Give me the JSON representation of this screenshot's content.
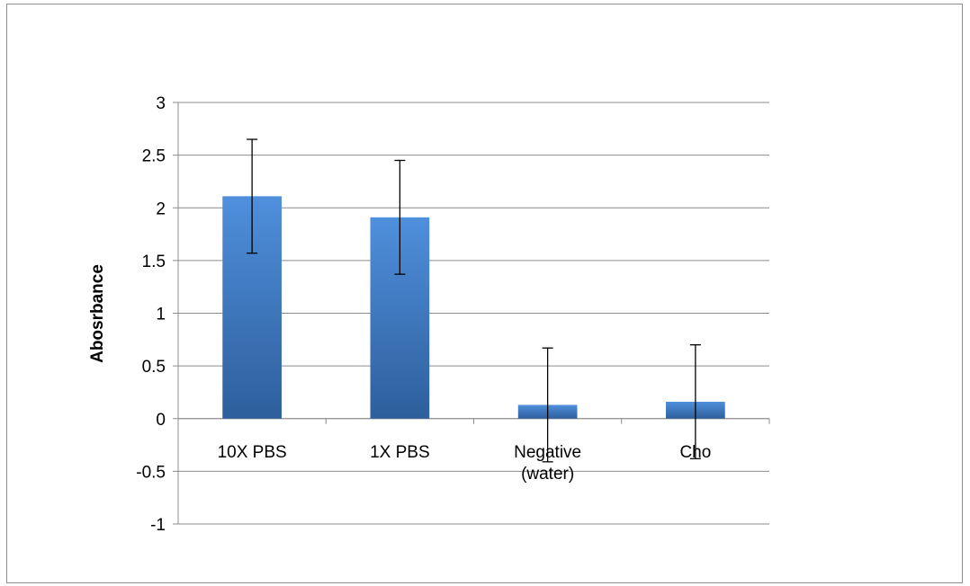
{
  "chart_data": {
    "type": "bar",
    "title": "",
    "xlabel": "",
    "ylabel": "Abosrbance",
    "ylim": [
      -1,
      3
    ],
    "yticks": [
      -1,
      -0.5,
      0,
      0.5,
      1,
      1.5,
      2,
      2.5,
      3
    ],
    "ytick_labels": [
      "-1",
      "-0.5",
      "0",
      "0.5",
      "1",
      "1.5",
      "2",
      "2.5",
      "3"
    ],
    "categories": [
      [
        "10X PBS"
      ],
      [
        "1X PBS"
      ],
      [
        "Negative",
        "(water)"
      ],
      [
        "Cho"
      ]
    ],
    "values": [
      2.11,
      1.91,
      0.13,
      0.16
    ],
    "errors": [
      0.54,
      0.54,
      0.54,
      0.54
    ],
    "grid": true,
    "legend": "none",
    "colors": {
      "bar_top": "#4f8fdc",
      "bar_bottom": "#2e5f9c",
      "grid": "#8c8c8c",
      "error_bar": "#000000"
    }
  }
}
